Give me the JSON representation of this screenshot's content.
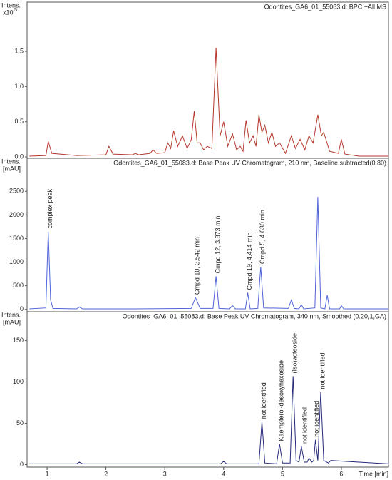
{
  "chart_data": [
    {
      "type": "line",
      "title": "Odontites_GA6_01_55083.d: BPC +All MS",
      "y_label": "Intens.",
      "y_unit": "x10",
      "y_exponent": "5",
      "color": "#b5382c",
      "xlim": [
        0.66,
        6.8
      ],
      "ylim": [
        -0.02,
        2.2
      ],
      "yticks": [
        {
          "value": 0,
          "label": "0.0"
        },
        0.5,
        {
          "value": 1,
          "label": "1.0"
        },
        1.5
      ],
      "x": [
        0.7,
        0.98,
        1.02,
        1.08,
        1.5,
        2.0,
        2.05,
        2.12,
        2.45,
        2.5,
        2.55,
        2.75,
        2.8,
        2.86,
        3.0,
        3.05,
        3.1,
        3.15,
        3.22,
        3.3,
        3.38,
        3.45,
        3.5,
        3.55,
        3.6,
        3.66,
        3.72,
        3.8,
        3.87,
        3.94,
        4.0,
        4.07,
        4.15,
        4.22,
        4.28,
        4.33,
        4.38,
        4.44,
        4.5,
        4.55,
        4.6,
        4.65,
        4.7,
        4.76,
        4.82,
        4.88,
        4.95,
        5.05,
        5.15,
        5.22,
        5.3,
        5.38,
        5.45,
        5.52,
        5.6,
        5.66,
        5.7,
        5.8,
        5.95,
        6.0,
        6.06,
        6.3,
        6.8
      ],
      "values": [
        0.01,
        0.02,
        0.22,
        0.05,
        0.02,
        0.03,
        0.15,
        0.04,
        0.03,
        0.05,
        0.03,
        0.05,
        0.1,
        0.05,
        0.06,
        0.2,
        0.12,
        0.37,
        0.15,
        0.3,
        0.12,
        0.25,
        0.65,
        0.2,
        0.2,
        0.1,
        0.15,
        0.12,
        1.55,
        0.3,
        0.5,
        0.15,
        0.33,
        0.1,
        0.15,
        0.08,
        0.52,
        0.2,
        0.3,
        0.15,
        0.6,
        0.35,
        0.45,
        0.2,
        0.35,
        0.15,
        0.2,
        0.05,
        0.3,
        0.12,
        0.25,
        0.1,
        0.3,
        0.2,
        0.6,
        0.3,
        0.35,
        0.08,
        0.05,
        0.25,
        0.04,
        0.01,
        0.01
      ]
    },
    {
      "type": "line",
      "title": "Odontites_GA6_01_55083.d: Base Peak UV Chromatogram, 210 nm, Baseline subtracted(0.80)",
      "y_label": "Intens.",
      "y_unit": "[mAU]",
      "color": "#4f63d8",
      "xlim": [
        0.66,
        6.8
      ],
      "ylim": [
        -50,
        3200
      ],
      "yticks": [
        0,
        500,
        1000,
        1500,
        2000,
        2500
      ],
      "x": [
        0.7,
        0.98,
        1.02,
        1.06,
        1.1,
        1.5,
        1.55,
        1.6,
        2.5,
        3.45,
        3.52,
        3.6,
        3.82,
        3.87,
        3.92,
        4.1,
        4.15,
        4.2,
        4.37,
        4.41,
        4.45,
        4.58,
        4.63,
        4.68,
        5.1,
        5.15,
        5.2,
        5.28,
        5.32,
        5.36,
        5.55,
        5.6,
        5.65,
        5.72,
        5.76,
        5.8,
        5.97,
        6.0,
        6.04,
        6.3,
        6.8
      ],
      "values": [
        10,
        30,
        1650,
        200,
        20,
        10,
        50,
        10,
        10,
        20,
        250,
        20,
        20,
        700,
        20,
        10,
        80,
        10,
        10,
        350,
        10,
        20,
        900,
        30,
        20,
        200,
        20,
        10,
        100,
        10,
        30,
        2380,
        30,
        10,
        300,
        10,
        10,
        80,
        10,
        10,
        10
      ],
      "annotations": [
        "complex peak",
        "Cmpd 10, 3.542 min",
        "Cmpd 12, 3.873 min",
        "Cmpd 19, 4.414 min",
        "Cmpd 5, 4.630 min"
      ]
    },
    {
      "type": "line",
      "title": "Odontites_GA6_01_55083.d: Base Peak UV Chromatogram, 340 nm, Smoothed (0.20,1,GA)",
      "y_label": "Intens.",
      "y_unit": "[mAU]",
      "color": "#262a7a",
      "xlim": [
        0.66,
        6.8
      ],
      "ylim": [
        -3,
        185
      ],
      "yticks": [
        0,
        50,
        100,
        150
      ],
      "xticks": [
        1,
        2,
        3,
        4,
        5,
        6
      ],
      "x_label": "Time [min]",
      "x": [
        0.7,
        1.5,
        1.55,
        1.6,
        3.95,
        4.0,
        4.05,
        4.6,
        4.65,
        4.7,
        4.9,
        4.95,
        5.0,
        5.13,
        5.18,
        5.23,
        5.28,
        5.32,
        5.37,
        5.42,
        5.45,
        5.5,
        5.53,
        5.56,
        5.6,
        5.65,
        5.7,
        5.78,
        5.82,
        6.3,
        6.8
      ],
      "values": [
        1,
        1,
        3,
        1,
        1,
        4,
        1,
        1,
        52,
        2,
        1,
        25,
        2,
        2,
        107,
        5,
        3,
        22,
        3,
        3,
        8,
        3,
        5,
        30,
        5,
        88,
        5,
        2,
        5,
        3,
        1
      ],
      "annotations": [
        "not identified",
        "Kaempferol-desoxyhexoside",
        "(Iso)acteoside",
        "not identified",
        "not identified",
        "not identified"
      ]
    }
  ]
}
